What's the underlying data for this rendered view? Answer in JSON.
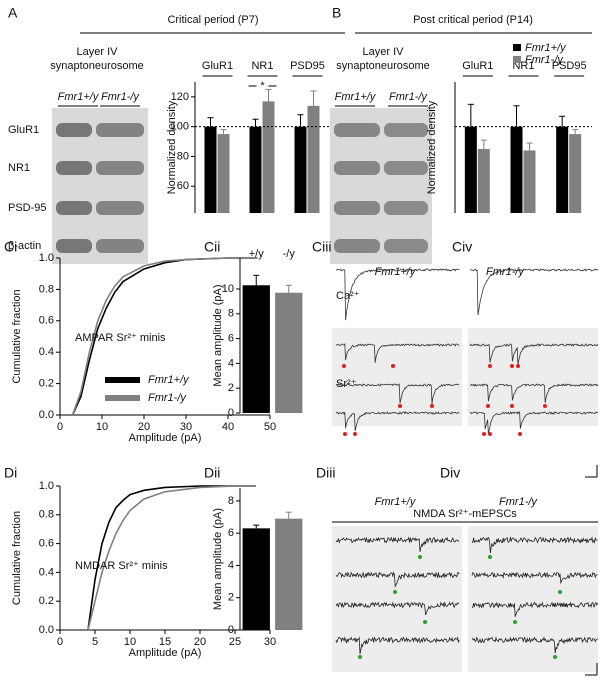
{
  "figure": {
    "panels": [
      "A",
      "B",
      "Ci",
      "Cii",
      "Ciii",
      "Civ",
      "Di",
      "Dii",
      "Diii",
      "Div"
    ],
    "headers": [
      "Critical period (P7)",
      "Post critical period (P14)"
    ],
    "blot_titles": [
      [
        "Layer IV",
        "synaptoneurosome"
      ],
      [
        "Layer IV",
        "synaptoneurosome"
      ]
    ],
    "blot_genotypes": [
      [
        "Fmr1+/y",
        "Fmr1-/y"
      ],
      [
        "Fmr1+/y",
        "Fmr1-/y"
      ]
    ],
    "blot_rows": [
      "GluR1",
      "NR1",
      "PSD-95",
      "β-actin"
    ],
    "trace_genotypes": [
      "Fmr1+/y",
      "Fmr1-/y",
      "Fmr1+/y",
      "Fmr1-/y"
    ],
    "trace_ions": [
      "Ca²⁺",
      "Sr²⁺"
    ],
    "nmda_title": "NMDA Sr²⁺-mEPSCs"
  },
  "chart_data": [
    {
      "type": "bar",
      "ylabel": "Normalized density",
      "categories": [
        "GluR1",
        "NR1",
        "PSD95"
      ],
      "series": [
        {
          "color": "#000000",
          "values": [
            100,
            100,
            100
          ],
          "errors": [
            6,
            5,
            8
          ]
        },
        {
          "color": "#808080",
          "values": [
            95,
            117,
            114
          ],
          "errors": [
            3,
            8,
            10
          ]
        }
      ],
      "ylim": [
        42,
        130
      ],
      "yticks": [
        60,
        80,
        100,
        120
      ],
      "refline": 100,
      "annotations": [
        "*"
      ]
    },
    {
      "type": "bar",
      "ylabel": "Normalized density",
      "categories": [
        "GluR1",
        "NR1",
        "PSD95"
      ],
      "series": [
        {
          "name": "Fmr1+/y",
          "color": "#000000",
          "values": [
            100,
            100,
            100
          ],
          "errors": [
            15,
            14,
            7
          ]
        },
        {
          "name": "Fmr1-/y",
          "color": "#808080",
          "values": [
            85,
            84,
            95
          ],
          "errors": [
            6,
            5,
            3
          ]
        }
      ],
      "ylim": [
        42,
        130
      ],
      "refline": 100,
      "legend": "upper left"
    },
    {
      "type": "line",
      "xlabel": "Amplitude (pA)",
      "ylabel": "Cumulative fraction",
      "annotations": [
        "AMPAR Sr²⁺ minis"
      ],
      "x": [
        3,
        5,
        7,
        9,
        11,
        13,
        15,
        20,
        25,
        30,
        40,
        47
      ],
      "series": [
        {
          "name": "Fmr1+/y",
          "color": "#000000",
          "values": [
            0,
            0.12,
            0.35,
            0.55,
            0.68,
            0.78,
            0.85,
            0.93,
            0.97,
            0.99,
            1,
            1
          ]
        },
        {
          "name": "Fmr1-/y",
          "color": "#808080",
          "values": [
            0,
            0.15,
            0.4,
            0.6,
            0.73,
            0.82,
            0.88,
            0.95,
            0.98,
            0.99,
            1,
            1
          ]
        }
      ],
      "xlim": [
        0,
        50
      ],
      "xticks": [
        0,
        10,
        20,
        30,
        40,
        50
      ],
      "ylim": [
        0,
        1
      ],
      "yticks": [
        {
          "value": 0,
          "label": "0.0"
        },
        0.2,
        0.4,
        0.6,
        0.8,
        {
          "value": 1,
          "label": "1.0"
        }
      ],
      "legend": "lower right"
    },
    {
      "type": "bar",
      "ylabel": "Mean amplitude (pA)",
      "categories": [
        "+/y",
        "-/y"
      ],
      "values": [
        10.3,
        9.7
      ],
      "errors": [
        0.8,
        0.6
      ],
      "colors": [
        "#000000",
        "#808080"
      ],
      "ylim": [
        0,
        12.5
      ],
      "yticks": [
        0,
        2,
        4,
        6,
        8,
        10
      ]
    },
    {
      "type": "line",
      "xlabel": "Amplitude (pA)",
      "ylabel": "Cumulative fraction",
      "annotations": [
        "NMDAR Sr²⁺ minis"
      ],
      "x": [
        4,
        5,
        6,
        7,
        8,
        9,
        10,
        12,
        15,
        20,
        25,
        28
      ],
      "series": [
        {
          "color": "#000000",
          "values": [
            0,
            0.35,
            0.6,
            0.75,
            0.85,
            0.9,
            0.94,
            0.97,
            0.99,
            1,
            1,
            1
          ]
        },
        {
          "color": "#808080",
          "values": [
            0,
            0.2,
            0.4,
            0.55,
            0.67,
            0.76,
            0.83,
            0.91,
            0.96,
            0.99,
            1,
            1
          ]
        }
      ],
      "xlim": [
        0,
        30
      ],
      "xticks": [
        0,
        5,
        10,
        15,
        20,
        25,
        30
      ],
      "ylim": [
        0,
        1
      ],
      "yticks": [
        {
          "value": 0,
          "label": "0.0"
        },
        0.2,
        0.4,
        0.6,
        0.8,
        {
          "value": 1,
          "label": "1.0"
        }
      ]
    },
    {
      "type": "bar",
      "ylabel": "Mean amplitude (pA)",
      "categories": [
        null,
        null
      ],
      "values": [
        6.3,
        6.9
      ],
      "errors": [
        0.2,
        0.4
      ],
      "colors": [
        "#000000",
        "#808080"
      ],
      "ylim": [
        0,
        8.8
      ],
      "yticks": [
        0,
        2,
        4,
        6,
        8
      ]
    }
  ]
}
